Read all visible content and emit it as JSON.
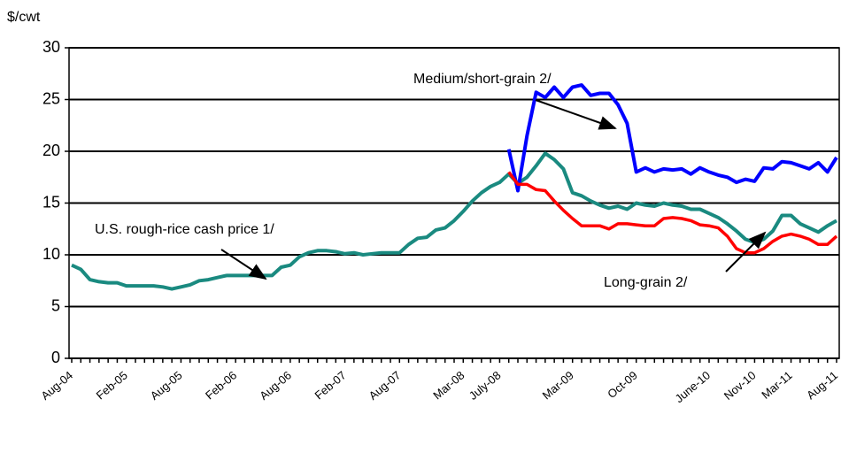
{
  "chart_data": {
    "type": "line",
    "y_label": "$/cwt",
    "categories": [
      "Aug-04",
      null,
      null,
      null,
      null,
      null,
      "Feb-05",
      null,
      null,
      null,
      null,
      null,
      "Aug-05",
      null,
      null,
      null,
      null,
      null,
      "Feb-06",
      null,
      null,
      null,
      null,
      null,
      "Aug-06",
      null,
      null,
      null,
      null,
      null,
      "Feb-07",
      null,
      null,
      null,
      null,
      null,
      "Aug-07",
      null,
      null,
      null,
      null,
      null,
      null,
      "Mar-08",
      null,
      null,
      null,
      "July-08",
      null,
      null,
      null,
      null,
      null,
      null,
      null,
      "Mar-09",
      null,
      null,
      null,
      null,
      null,
      null,
      "Oct-09",
      null,
      null,
      null,
      null,
      null,
      null,
      null,
      "June-10",
      null,
      null,
      null,
      null,
      "Nov-10",
      null,
      null,
      null,
      "Mar-11",
      null,
      null,
      null,
      null,
      "Aug-11"
    ],
    "series": [
      {
        "name": "U.S. rough-rice cash price 1/",
        "color": "#1a8a80",
        "values": [
          9.0,
          8.6,
          7.6,
          7.4,
          7.3,
          7.3,
          7.0,
          7.0,
          7.0,
          7.0,
          6.9,
          6.7,
          6.9,
          7.1,
          7.5,
          7.6,
          7.8,
          8.0,
          8.0,
          8.0,
          8.0,
          8.0,
          8.0,
          8.8,
          9.0,
          9.8,
          10.2,
          10.4,
          10.4,
          10.3,
          10.1,
          10.2,
          10.0,
          10.1,
          10.2,
          10.2,
          10.2,
          11.0,
          11.6,
          11.7,
          12.4,
          12.6,
          13.3,
          14.2,
          15.2,
          16.0,
          16.6,
          17.0,
          17.8,
          16.9,
          17.5,
          18.6,
          19.8,
          19.2,
          18.3,
          16.0,
          15.7,
          15.2,
          14.8,
          14.5,
          14.7,
          14.4,
          15.0,
          14.8,
          14.7,
          15.0,
          14.8,
          14.7,
          14.4,
          14.4,
          14.0,
          13.6,
          13.0,
          12.3,
          11.5,
          11.2,
          11.5,
          12.3,
          13.8,
          13.8,
          13.0,
          12.6,
          12.2,
          12.8,
          13.3
        ]
      },
      {
        "name": "Medium/short-grain 2/",
        "color": "#0000ff",
        "values": [
          null,
          null,
          null,
          null,
          null,
          null,
          null,
          null,
          null,
          null,
          null,
          null,
          null,
          null,
          null,
          null,
          null,
          null,
          null,
          null,
          null,
          null,
          null,
          null,
          null,
          null,
          null,
          null,
          null,
          null,
          null,
          null,
          null,
          null,
          null,
          null,
          null,
          null,
          null,
          null,
          null,
          null,
          null,
          null,
          null,
          null,
          null,
          null,
          20.2,
          16.2,
          21.5,
          25.7,
          25.2,
          26.2,
          25.2,
          26.2,
          26.4,
          25.4,
          25.6,
          25.6,
          24.5,
          22.7,
          18.0,
          18.4,
          18.0,
          18.3,
          18.2,
          18.3,
          17.8,
          18.4,
          18.0,
          17.7,
          17.5,
          17.0,
          17.3,
          17.1,
          18.4,
          18.3,
          19.0,
          18.9,
          18.6,
          18.3,
          18.9,
          18.0,
          19.4
        ]
      },
      {
        "name": "Long-grain 2/",
        "color": "#ff0000",
        "values": [
          null,
          null,
          null,
          null,
          null,
          null,
          null,
          null,
          null,
          null,
          null,
          null,
          null,
          null,
          null,
          null,
          null,
          null,
          null,
          null,
          null,
          null,
          null,
          null,
          null,
          null,
          null,
          null,
          null,
          null,
          null,
          null,
          null,
          null,
          null,
          null,
          null,
          null,
          null,
          null,
          null,
          null,
          null,
          null,
          null,
          null,
          null,
          null,
          18.0,
          16.8,
          16.8,
          16.3,
          16.2,
          15.2,
          14.3,
          13.5,
          12.8,
          12.8,
          12.8,
          12.5,
          13.0,
          13.0,
          12.9,
          12.8,
          12.8,
          13.5,
          13.6,
          13.5,
          13.3,
          12.9,
          12.8,
          12.6,
          11.8,
          10.6,
          10.2,
          10.2,
          10.6,
          11.3,
          11.8,
          12.0,
          11.8,
          11.5,
          11.0,
          11.0,
          11.8
        ]
      }
    ],
    "ylim": [
      0,
      30
    ],
    "yticks": [
      0,
      5,
      10,
      15,
      20,
      25,
      30
    ],
    "grid": true
  }
}
